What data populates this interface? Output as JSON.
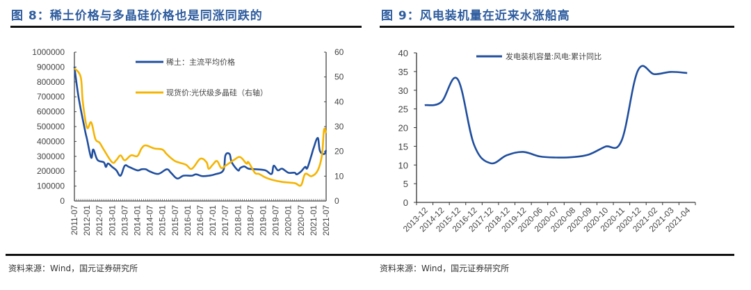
{
  "colors": {
    "title": "#2e5c9e",
    "rare_earth": "#1f4e9e",
    "silicon": "#f5b400",
    "wind": "#1f4e9e"
  },
  "left": {
    "title": "图 8：稀土价格与多晶硅价格也是同涨同跌的",
    "source": "资料来源：Wind，国元证券研究所"
  },
  "right": {
    "title": "图 9：风电装机量在近来水涨船高",
    "source": "资料来源：Wind，国元证券研究所"
  },
  "chart_data": [
    {
      "type": "line",
      "title": "稀土价格与多晶硅价格",
      "ylim": [
        0,
        1000000
      ],
      "y2lim": [
        0,
        60
      ],
      "yticks": [
        "0",
        "100000",
        "200000",
        "300000",
        "400000",
        "500000",
        "600000",
        "700000",
        "800000",
        "900000",
        "1000000"
      ],
      "y2ticks": [
        "0",
        "10",
        "20",
        "30",
        "40",
        "50",
        "60"
      ],
      "xticks": [
        "2011-07",
        "2012-01",
        "2012-07",
        "2013-01",
        "2013-07",
        "2014-01",
        "2014-07",
        "2015-01",
        "2015-07",
        "2016-01",
        "2016-07",
        "2017-01",
        "2017-07",
        "2018-01",
        "2018-07",
        "2019-01",
        "2019-07",
        "2020-01",
        "2020-07",
        "2021-01",
        "2021-07"
      ],
      "legend_position": "top-center",
      "series": [
        {
          "name": "稀土：主流平均价格",
          "axis": "left",
          "points": [
            [
              "2011-07",
              902000
            ],
            [
              "2011-09",
              696000
            ],
            [
              "2011-12",
              478000
            ],
            [
              "2012-01",
              416000
            ],
            [
              "2012-03",
              291000
            ],
            [
              "2012-04",
              346000
            ],
            [
              "2012-06",
              276000
            ],
            [
              "2012-09",
              260000
            ],
            [
              "2012-10",
              229000
            ],
            [
              "2012-11",
              252000
            ],
            [
              "2013-01",
              229000
            ],
            [
              "2013-03",
              206000
            ],
            [
              "2013-05",
              170000
            ],
            [
              "2013-07",
              237000
            ],
            [
              "2013-09",
              229000
            ],
            [
              "2014-01",
              206000
            ],
            [
              "2014-03",
              213000
            ],
            [
              "2014-05",
              213000
            ],
            [
              "2014-07",
              198000
            ],
            [
              "2014-11",
              182000
            ],
            [
              "2015-03",
              213000
            ],
            [
              "2015-05",
              190000
            ],
            [
              "2015-08",
              151000
            ],
            [
              "2015-11",
              170000
            ],
            [
              "2016-03",
              170000
            ],
            [
              "2016-05",
              179000
            ],
            [
              "2016-08",
              167000
            ],
            [
              "2016-11",
              170000
            ],
            [
              "2017-02",
              179000
            ],
            [
              "2017-06",
              206000
            ],
            [
              "2017-07",
              307000
            ],
            [
              "2017-09",
              315000
            ],
            [
              "2017-10",
              260000
            ],
            [
              "2018-01",
              206000
            ],
            [
              "2018-02",
              221000
            ],
            [
              "2018-04",
              232000
            ],
            [
              "2018-06",
              217000
            ],
            [
              "2018-10",
              213000
            ],
            [
              "2019-02",
              206000
            ],
            [
              "2019-05",
              182000
            ],
            [
              "2019-06",
              237000
            ],
            [
              "2019-08",
              206000
            ],
            [
              "2019-10",
              217000
            ],
            [
              "2020-01",
              190000
            ],
            [
              "2020-04",
              190000
            ],
            [
              "2020-05",
              179000
            ],
            [
              "2020-07",
              198000
            ],
            [
              "2020-09",
              229000
            ],
            [
              "2020-10",
              221000
            ],
            [
              "2020-12",
              307000
            ],
            [
              "2021-01",
              354000
            ],
            [
              "2021-03",
              424000
            ],
            [
              "2021-04",
              338000
            ],
            [
              "2021-06",
              315000
            ],
            [
              "2021-07",
              341000
            ]
          ]
        },
        {
          "name": "现货价:光伏级多晶硅（右轴）",
          "axis": "right",
          "points": [
            [
              "2011-07",
              53.5
            ],
            [
              "2011-10",
              50
            ],
            [
              "2011-11",
              40
            ],
            [
              "2012-01",
              29.6
            ],
            [
              "2012-03",
              31.7
            ],
            [
              "2012-05",
              25
            ],
            [
              "2012-07",
              23.5
            ],
            [
              "2012-09",
              20.7
            ],
            [
              "2013-01",
              15.6
            ],
            [
              "2013-03",
              16.5
            ],
            [
              "2013-05",
              18.4
            ],
            [
              "2013-07",
              16.4
            ],
            [
              "2013-10",
              18.4
            ],
            [
              "2014-01",
              18.1
            ],
            [
              "2014-03",
              21.2
            ],
            [
              "2014-05",
              22.4
            ],
            [
              "2014-09",
              21.2
            ],
            [
              "2015-01",
              20.7
            ],
            [
              "2015-03",
              18.9
            ],
            [
              "2015-07",
              16.1
            ],
            [
              "2015-12",
              14.7
            ],
            [
              "2016-03",
              13
            ],
            [
              "2016-07",
              17
            ],
            [
              "2016-10",
              15.6
            ],
            [
              "2016-11",
              13
            ],
            [
              "2017-01",
              14.7
            ],
            [
              "2017-03",
              16.1
            ],
            [
              "2017-05",
              13.3
            ],
            [
              "2017-07",
              14.2
            ],
            [
              "2017-11",
              16.5
            ],
            [
              "2018-02",
              17.7
            ],
            [
              "2018-05",
              15.1
            ],
            [
              "2018-06",
              15.6
            ],
            [
              "2018-09",
              11.4
            ],
            [
              "2018-11",
              10.9
            ],
            [
              "2019-02",
              9.5
            ],
            [
              "2019-05",
              8.6
            ],
            [
              "2019-10",
              7.7
            ],
            [
              "2020-04",
              7.2
            ],
            [
              "2020-07",
              6.3
            ],
            [
              "2020-09",
              10.9
            ],
            [
              "2020-12",
              10
            ],
            [
              "2021-03",
              12.3
            ],
            [
              "2021-05",
              18.4
            ],
            [
              "2021-06",
              28.7
            ],
            [
              "2021-07",
              27.3
            ]
          ]
        }
      ]
    },
    {
      "type": "line",
      "title": "风电装机量",
      "ylim": [
        0,
        40
      ],
      "yticks": [
        "0",
        "5",
        "10",
        "15",
        "20",
        "25",
        "30",
        "35",
        "40"
      ],
      "categories": [
        "2013-12",
        "2014-12",
        "2015-12",
        "2016-12",
        "2017-12",
        "2018-12",
        "2019-12",
        "2020-06",
        "2020-07",
        "2020-08",
        "2020-09",
        "2020-10",
        "2020-11",
        "2020-12",
        "2021-02",
        "2021-03",
        "2021-04"
      ],
      "legend_position": "top-center",
      "series": [
        {
          "name": "发电装机容量:风电:累计同比",
          "values": [
            26,
            26.8,
            33,
            15.5,
            10.5,
            12.6,
            13.5,
            12.3,
            12,
            12.1,
            12.8,
            14.9,
            16.5,
            35.3,
            34.3,
            34.9,
            34.6
          ]
        }
      ]
    }
  ]
}
